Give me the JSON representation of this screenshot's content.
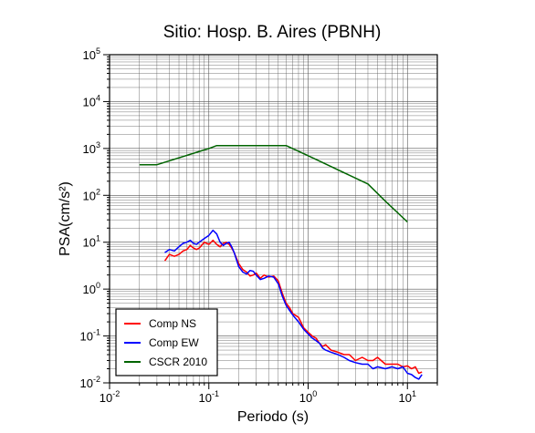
{
  "chart_data": {
    "type": "line",
    "title": "Sitio: Hosp. B. Aires (PBNH)",
    "xlabel": "Periodo (s)",
    "ylabel": "PSA(cm/s²)",
    "xscale": "log",
    "yscale": "log",
    "xlim": [
      0.01,
      20
    ],
    "ylim": [
      0.01,
      100000
    ],
    "grid": true,
    "legend_position": "bottom-left",
    "x_ticks": [
      {
        "base": "10",
        "exp": "-2"
      },
      {
        "base": "10",
        "exp": "-1"
      },
      {
        "base": "10",
        "exp": "0"
      },
      {
        "base": "10",
        "exp": "1"
      }
    ],
    "y_ticks": [
      {
        "base": "10",
        "exp": "-2"
      },
      {
        "base": "10",
        "exp": "-1"
      },
      {
        "base": "10",
        "exp": "0"
      },
      {
        "base": "10",
        "exp": "1"
      },
      {
        "base": "10",
        "exp": "2"
      },
      {
        "base": "10",
        "exp": "3"
      },
      {
        "base": "10",
        "exp": "4"
      },
      {
        "base": "10",
        "exp": "5"
      }
    ],
    "series": [
      {
        "name": "Comp NS",
        "color": "#ff0000",
        "x": [
          0.036,
          0.04,
          0.045,
          0.05,
          0.055,
          0.06,
          0.065,
          0.07,
          0.075,
          0.08,
          0.09,
          0.1,
          0.11,
          0.12,
          0.13,
          0.14,
          0.15,
          0.16,
          0.17,
          0.18,
          0.2,
          0.22,
          0.24,
          0.26,
          0.28,
          0.3,
          0.33,
          0.36,
          0.4,
          0.45,
          0.5,
          0.55,
          0.6,
          0.65,
          0.7,
          0.8,
          0.9,
          1.0,
          1.1,
          1.2,
          1.3,
          1.4,
          1.5,
          1.7,
          2.0,
          2.3,
          2.6,
          3.0,
          3.5,
          4.0,
          4.5,
          5.0,
          6.0,
          7.0,
          8.0,
          9.0,
          10.0,
          11.0,
          12.0,
          13.0,
          14.0
        ],
        "y": [
          4.0,
          5.5,
          5.0,
          5.5,
          6.5,
          7.0,
          8.5,
          7.5,
          7.0,
          7.5,
          10.0,
          9.0,
          11.0,
          9.0,
          8.0,
          9.5,
          10.0,
          9.0,
          7.5,
          6.0,
          3.5,
          2.6,
          2.3,
          1.9,
          2.0,
          2.2,
          1.7,
          2.0,
          1.8,
          1.9,
          1.5,
          0.8,
          0.5,
          0.4,
          0.3,
          0.25,
          0.15,
          0.12,
          0.1,
          0.09,
          0.07,
          0.06,
          0.065,
          0.05,
          0.045,
          0.04,
          0.04,
          0.03,
          0.035,
          0.03,
          0.03,
          0.035,
          0.025,
          0.025,
          0.025,
          0.022,
          0.023,
          0.02,
          0.022,
          0.016,
          0.017
        ]
      },
      {
        "name": "Comp EW",
        "color": "#0000ff",
        "x": [
          0.036,
          0.04,
          0.045,
          0.05,
          0.055,
          0.06,
          0.065,
          0.07,
          0.075,
          0.08,
          0.09,
          0.1,
          0.11,
          0.12,
          0.13,
          0.14,
          0.15,
          0.16,
          0.17,
          0.18,
          0.2,
          0.22,
          0.24,
          0.26,
          0.28,
          0.3,
          0.33,
          0.36,
          0.4,
          0.45,
          0.5,
          0.55,
          0.6,
          0.65,
          0.7,
          0.8,
          0.9,
          1.0,
          1.1,
          1.2,
          1.3,
          1.4,
          1.5,
          1.7,
          2.0,
          2.3,
          2.6,
          3.0,
          3.5,
          4.0,
          4.5,
          5.0,
          6.0,
          7.0,
          8.0,
          9.0,
          10.0,
          11.0,
          12.0,
          13.0,
          14.0
        ],
        "y": [
          6.0,
          7.0,
          6.5,
          8.0,
          9.5,
          10.0,
          11.0,
          9.5,
          9.0,
          10.0,
          12.0,
          14.0,
          18.0,
          15.0,
          10.0,
          8.5,
          9.5,
          10.0,
          8.0,
          6.0,
          3.0,
          2.3,
          2.1,
          2.5,
          2.4,
          2.0,
          1.6,
          1.7,
          1.9,
          1.8,
          1.3,
          0.7,
          0.45,
          0.35,
          0.28,
          0.2,
          0.14,
          0.11,
          0.09,
          0.08,
          0.07,
          0.055,
          0.05,
          0.045,
          0.04,
          0.035,
          0.03,
          0.027,
          0.025,
          0.025,
          0.02,
          0.022,
          0.02,
          0.022,
          0.02,
          0.022,
          0.016,
          0.015,
          0.013,
          0.012,
          0.015
        ]
      },
      {
        "name": "CSCR 2010",
        "color": "#006400",
        "x": [
          0.02,
          0.03,
          0.1,
          0.12,
          0.6,
          1.0,
          2.0,
          4.0,
          6.0,
          10.0
        ],
        "y": [
          450,
          450,
          1000,
          1150,
          1150,
          700,
          350,
          175,
          75,
          27
        ]
      }
    ]
  }
}
